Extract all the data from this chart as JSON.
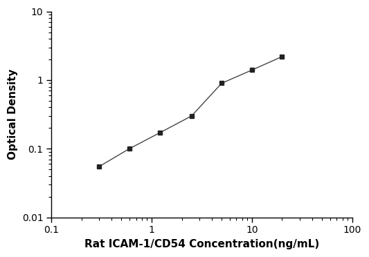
{
  "x": [
    0.3,
    0.6,
    1.2,
    2.5,
    5.0,
    10.0,
    20.0
  ],
  "y": [
    0.055,
    0.1,
    0.17,
    0.3,
    0.9,
    1.4,
    2.2
  ],
  "xlabel": "Rat ICAM-1/CD54 Concentration(ng/mL)",
  "ylabel": "Optical Density",
  "xlim": [
    0.1,
    100
  ],
  "ylim": [
    0.01,
    10
  ],
  "xticks": [
    0.1,
    1,
    10,
    100
  ],
  "xtick_labels": [
    "0.1",
    "1",
    "10",
    "100"
  ],
  "yticks": [
    0.01,
    0.1,
    1,
    10
  ],
  "ytick_labels": [
    "0.01",
    "0.1",
    "1",
    "10"
  ],
  "line_color": "#444444",
  "marker_color": "#222222",
  "marker": "s",
  "marker_size": 5,
  "line_width": 1.0,
  "background_color": "#ffffff",
  "font_size_label": 11,
  "font_size_tick": 10
}
